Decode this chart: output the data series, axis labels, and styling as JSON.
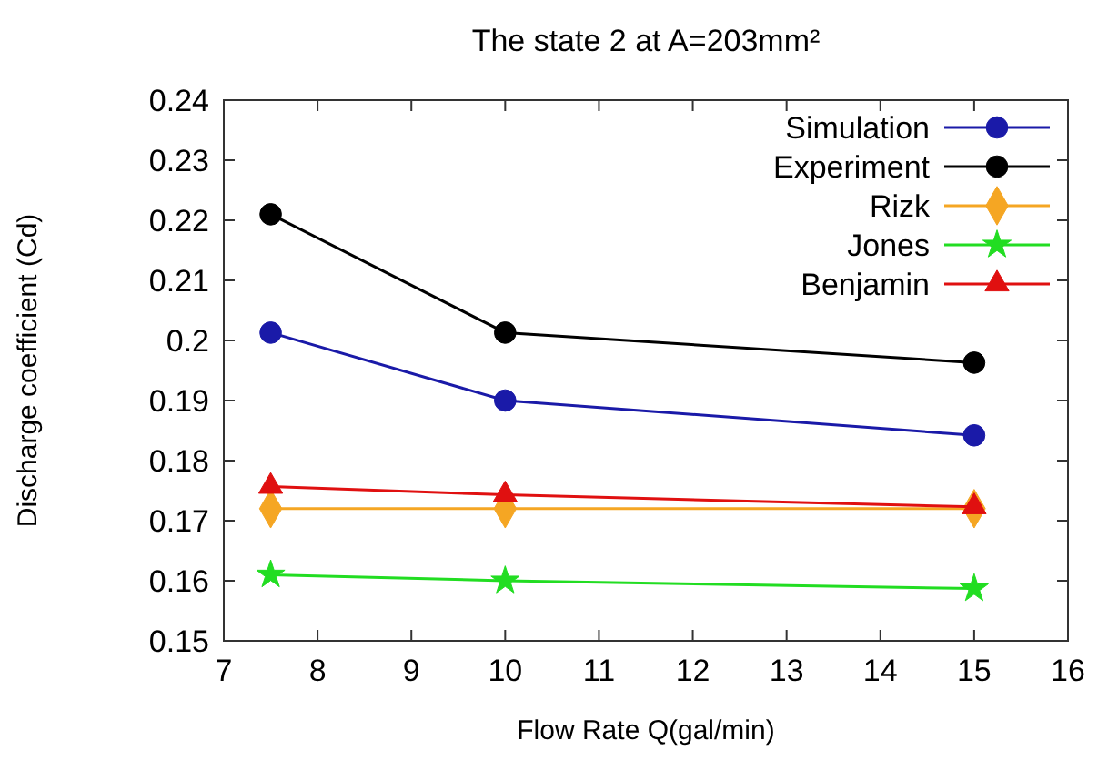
{
  "chart_data": {
    "type": "line",
    "title": "The state 2 at A=203mm²",
    "xlabel": "Flow Rate Q(gal/min)",
    "ylabel": "Discharge coefficient (Cd)",
    "x": [
      7.5,
      10,
      15
    ],
    "series": [
      {
        "name": "Simulation",
        "color": "#1a1aa8",
        "marker": "circle",
        "values": [
          0.2013,
          0.19,
          0.1842
        ]
      },
      {
        "name": "Experiment",
        "color": "#000000",
        "marker": "circle",
        "values": [
          0.221,
          0.2013,
          0.1963
        ]
      },
      {
        "name": "Rizk",
        "color": "#f5a623",
        "marker": "diamond",
        "values": [
          0.172,
          0.172,
          0.172
        ]
      },
      {
        "name": "Jones",
        "color": "#22dd22",
        "marker": "star",
        "values": [
          0.161,
          0.16,
          0.1587
        ]
      },
      {
        "name": "Benjamin",
        "color": "#e01010",
        "marker": "triangle",
        "values": [
          0.1757,
          0.1743,
          0.1723
        ]
      }
    ],
    "xlim": [
      7,
      16
    ],
    "xticks": [
      7,
      8,
      9,
      10,
      11,
      12,
      13,
      14,
      15,
      16
    ],
    "ylim": [
      0.15,
      0.24
    ],
    "yticks": [
      0.15,
      0.16,
      0.17,
      0.18,
      0.19,
      0.2,
      0.21,
      0.22,
      0.23,
      0.24
    ],
    "legend": "top right",
    "grid": false,
    "line_style": "solid"
  }
}
